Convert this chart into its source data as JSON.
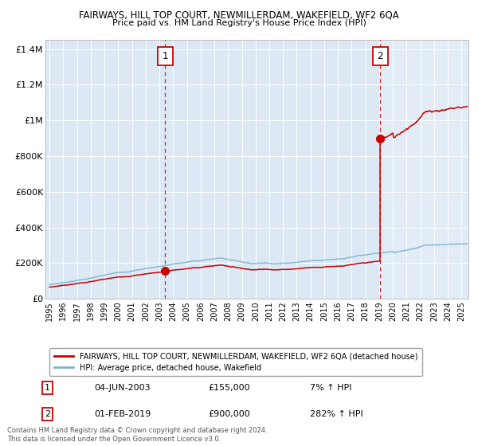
{
  "title": "FAIRWAYS, HILL TOP COURT, NEWMILLERDAM, WAKEFIELD, WF2 6QA",
  "subtitle": "Price paid vs. HM Land Registry's House Price Index (HPI)",
  "xlim_start": 1994.7,
  "xlim_end": 2025.5,
  "ylim": [
    0,
    1450000
  ],
  "yticks": [
    0,
    200000,
    400000,
    600000,
    800000,
    1000000,
    1200000,
    1400000
  ],
  "ytick_labels": [
    "£0",
    "£200K",
    "£400K",
    "£600K",
    "£800K",
    "£1M",
    "£1.2M",
    "£1.4M"
  ],
  "bg_color": "#dce9f5",
  "grid_color": "#ffffff",
  "hpi_color": "#7fb3d3",
  "price_color": "#cc0000",
  "purchase1_x": 2003.42,
  "purchase1_y": 155000,
  "purchase2_x": 2019.08,
  "purchase2_y": 900000,
  "legend_line1": "FAIRWAYS, HILL TOP COURT, NEWMILLERDAM, WAKEFIELD, WF2 6QA (detached house)",
  "legend_line2": "HPI: Average price, detached house, Wakefield",
  "annot1_num": "1",
  "annot1_date": "04-JUN-2003",
  "annot1_price": "£155,000",
  "annot1_hpi": "7% ↑ HPI",
  "annot2_num": "2",
  "annot2_date": "01-FEB-2019",
  "annot2_price": "£900,000",
  "annot2_hpi": "282% ↑ HPI",
  "copyright_text": "Contains HM Land Registry data © Crown copyright and database right 2024.\nThis data is licensed under the Open Government Licence v3.0."
}
